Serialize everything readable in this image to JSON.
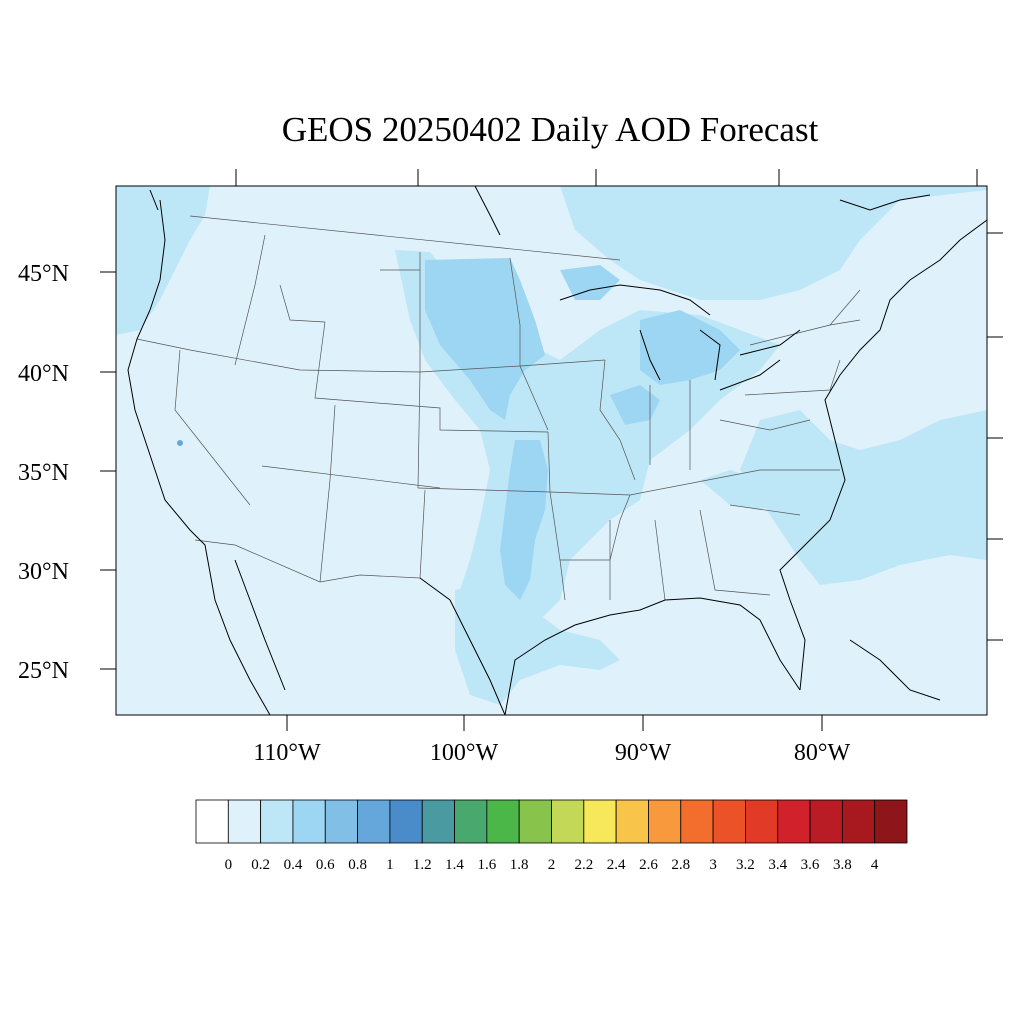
{
  "title": "GEOS 20250402 Daily AOD Forecast",
  "map": {
    "lat_labels": [
      "45°N",
      "40°N",
      "35°N",
      "30°N",
      "25°N"
    ],
    "lat_values": [
      45,
      40,
      35,
      30,
      25
    ],
    "lon_labels": [
      "110°W",
      "100°W",
      "90°W",
      "80°W"
    ],
    "lon_values": [
      -110,
      -100,
      -90,
      -80
    ],
    "background_color": "#dff2fb",
    "border_color": "#000000"
  },
  "colorbar": {
    "labels": [
      "0",
      "0.2",
      "0.4",
      "0.6",
      "0.8",
      "1",
      "1.2",
      "1.4",
      "1.6",
      "1.8",
      "2",
      "2.2",
      "2.4",
      "2.6",
      "2.8",
      "3",
      "3.2",
      "3.4",
      "3.6",
      "3.8",
      "4"
    ],
    "colors": [
      "#ffffff",
      "#dff2fb",
      "#bde6f7",
      "#9dd6f3",
      "#82bfe6",
      "#65a6db",
      "#4a8cc9",
      "#4a9ba1",
      "#48a86e",
      "#4bb749",
      "#88c44c",
      "#c4d857",
      "#f7e75a",
      "#f8c44a",
      "#f7993c",
      "#f36d2c",
      "#ec5228",
      "#e13a27",
      "#d1212b",
      "#b91c24",
      "#a8191f",
      "#8e1519"
    ]
  }
}
